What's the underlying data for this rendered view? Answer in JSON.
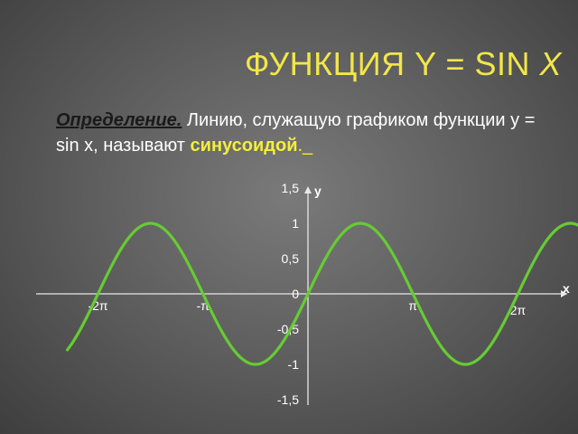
{
  "title": {
    "prefix": "ФУНКЦИЯ Y = SIN ",
    "variable": "X",
    "color": "#f2e64a"
  },
  "definition": {
    "term": "Определение.",
    "text": " Линию, служащую графиком функции y = sin x, называют ",
    "highlight": "синусоидой",
    "trail": "._"
  },
  "chart_data": {
    "type": "line",
    "function": "sin(x)",
    "title": "",
    "xlabel": "x",
    "ylabel": "y",
    "xlim": [
      -7.3,
      8.6
    ],
    "ylim": [
      -1.5,
      1.5
    ],
    "x_ticks": [
      {
        "value": -6.2832,
        "label": "-2π"
      },
      {
        "value": -3.1416,
        "label": "-π"
      },
      {
        "value": 3.1416,
        "label": "π"
      },
      {
        "value": 6.2832,
        "label": "2π"
      }
    ],
    "y_ticks": [
      {
        "value": 1.5,
        "label": "1,5"
      },
      {
        "value": 1,
        "label": "1"
      },
      {
        "value": 0.5,
        "label": "0,5"
      },
      {
        "value": 0,
        "label": "0"
      },
      {
        "value": -0.5,
        "label": "-0,5"
      },
      {
        "value": -1,
        "label": "-1"
      },
      {
        "value": -1.5,
        "label": "-1,5"
      }
    ],
    "curve_domain": [
      -7.2,
      8.1
    ],
    "series": [
      {
        "color": "#66cc33"
      }
    ],
    "grid": false,
    "axis_color": "#e8e8e8",
    "label_color": "#ffffff"
  }
}
